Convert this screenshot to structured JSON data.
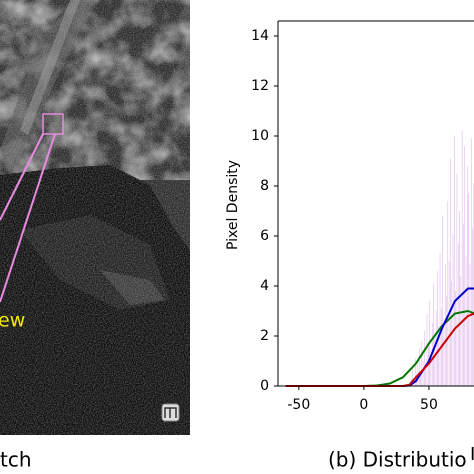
{
  "left_panel": {
    "label": "ew",
    "caption": "tch"
  },
  "chart_data": {
    "type": "histogram",
    "caption": "(b) Distributio",
    "y_label": "Pixel Density",
    "x_label": "I",
    "bins": [
      36,
      37,
      38,
      39,
      40,
      41,
      42,
      43,
      44,
      45,
      46,
      47,
      48,
      49,
      50,
      51,
      52,
      53,
      54,
      55,
      56,
      57,
      58,
      59,
      60,
      61,
      62,
      63,
      64,
      65,
      66,
      67,
      68,
      69,
      70,
      71,
      72,
      73,
      74,
      75,
      76,
      77,
      78,
      79,
      80,
      81,
      82,
      83,
      84,
      85,
      86
    ],
    "counts": [
      0.3,
      0.8,
      0.2,
      1.1,
      0.5,
      0.9,
      1.5,
      0.4,
      1.8,
      1.0,
      2.2,
      0.7,
      2.9,
      1.6,
      3.4,
      1.2,
      2.5,
      4.1,
      1.9,
      3.0,
      4.6,
      2.4,
      5.3,
      3.1,
      6.8,
      2.7,
      4.9,
      3.6,
      7.4,
      5.0,
      9.1,
      4.2,
      6.1,
      10.0,
      3.8,
      8.5,
      5.7,
      7.0,
      4.4,
      10.2,
      6.5,
      9.6,
      5.2,
      8.8,
      7.7,
      4.9,
      9.9,
      6.3,
      8.1,
      5.5
    ],
    "color": "#dcaee8",
    "series": [
      {
        "color": "#007700",
        "x": [
          -60,
          0,
          10,
          20,
          30,
          40,
          50,
          60,
          70,
          80,
          85
        ],
        "values": [
          0,
          0,
          0.02,
          0.1,
          0.35,
          0.9,
          1.7,
          2.4,
          2.9,
          3.0,
          2.9
        ]
      },
      {
        "color": "#0000cc",
        "x": [
          -60,
          30,
          35,
          40,
          50,
          60,
          70,
          80,
          85
        ],
        "values": [
          0,
          0,
          0.02,
          0.2,
          1.0,
          2.3,
          3.4,
          3.9,
          3.9
        ]
      },
      {
        "color": "#cc0000",
        "x": [
          -60,
          30,
          35,
          40,
          50,
          60,
          70,
          80,
          85
        ],
        "values": [
          0,
          0,
          0.05,
          0.35,
          0.9,
          1.6,
          2.3,
          2.8,
          2.9
        ]
      }
    ],
    "xlim": [
      -66,
      85
    ],
    "ylim": [
      0,
      14.6
    ],
    "xticks": [
      -50,
      0,
      50
    ],
    "yticks": [
      0,
      2,
      4,
      6,
      8,
      10,
      12,
      14
    ]
  }
}
